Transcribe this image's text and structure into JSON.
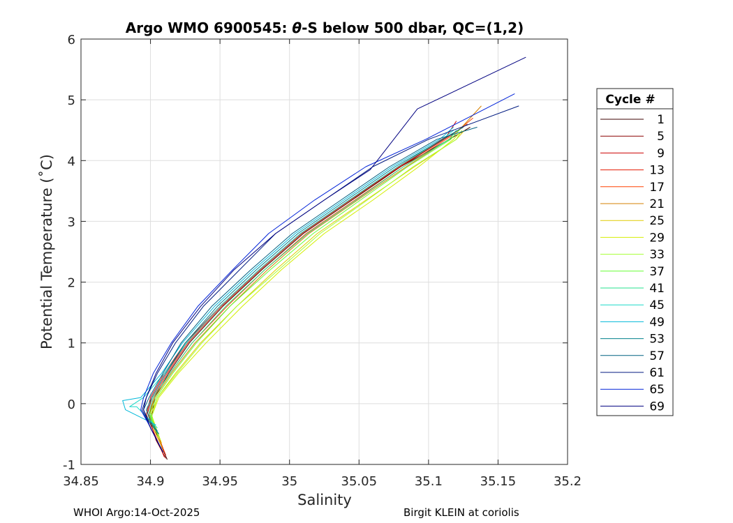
{
  "chart_data": {
    "type": "line",
    "title": "Argo WMO 6900545: θ-S below 500 dbar,  QC=(1,2)",
    "title_parts": {
      "pre": "Argo WMO 6900545: ",
      "theta": "θ",
      "post": "-S below 500 dbar,  QC=(1,2)"
    },
    "xlabel": "Salinity",
    "ylabel": "Potential Temperature (˚C)",
    "xlim": [
      34.85,
      35.2
    ],
    "ylim": [
      -1,
      6
    ],
    "xticks": [
      34.85,
      34.9,
      34.95,
      35.0,
      35.05,
      35.1,
      35.15,
      35.2
    ],
    "xtick_labels": [
      "34.85",
      "34.9",
      "34.95",
      "35",
      "35.05",
      "35.1",
      "35.15",
      "35.2"
    ],
    "yticks": [
      -1,
      0,
      1,
      2,
      3,
      4,
      5,
      6
    ],
    "ytick_labels": [
      "-1",
      "0",
      "1",
      "2",
      "3",
      "4",
      "5",
      "6"
    ],
    "grid": true,
    "legend": {
      "title": "Cycle #",
      "placement": "right-outside",
      "entries": [
        {
          "label": "1",
          "color": "#3d0000"
        },
        {
          "label": "5",
          "color": "#8c0000"
        },
        {
          "label": "9",
          "color": "#cc0000"
        },
        {
          "label": "13",
          "color": "#e61a00"
        },
        {
          "label": "17",
          "color": "#ff4000"
        },
        {
          "label": "21",
          "color": "#d68000"
        },
        {
          "label": "25",
          "color": "#e0cc00"
        },
        {
          "label": "29",
          "color": "#d4ee00"
        },
        {
          "label": "33",
          "color": "#a6ff33"
        },
        {
          "label": "37",
          "color": "#66ff33"
        },
        {
          "label": "41",
          "color": "#26e08c"
        },
        {
          "label": "45",
          "color": "#1ad9c8"
        },
        {
          "label": "49",
          "color": "#00b8d9"
        },
        {
          "label": "53",
          "color": "#00808c"
        },
        {
          "label": "57",
          "color": "#006080"
        },
        {
          "label": "61",
          "color": "#001a80"
        },
        {
          "label": "65",
          "color": "#0022d9"
        },
        {
          "label": "69",
          "color": "#000080"
        }
      ]
    },
    "series": [
      {
        "name": "1",
        "color": "#3d0000",
        "x": [
          34.912,
          34.905,
          34.901,
          34.903,
          34.913,
          34.928,
          34.952,
          34.98,
          35.01,
          35.045,
          35.08,
          35.115,
          35.13
        ],
        "y": [
          -0.92,
          -0.55,
          -0.2,
          0.1,
          0.5,
          1.0,
          1.6,
          2.2,
          2.8,
          3.35,
          3.9,
          4.35,
          4.55
        ]
      },
      {
        "name": "5",
        "color": "#8c0000",
        "x": [
          34.911,
          34.904,
          34.898,
          34.901,
          34.911,
          34.926,
          34.95,
          34.978,
          35.008,
          35.043,
          35.08,
          35.118,
          35.128
        ],
        "y": [
          -0.9,
          -0.6,
          -0.15,
          0.1,
          0.5,
          1.0,
          1.6,
          2.2,
          2.8,
          3.35,
          3.9,
          4.45,
          4.6
        ]
      },
      {
        "name": "9",
        "color": "#cc0000",
        "x": [
          34.91,
          34.903,
          34.897,
          34.9,
          34.91,
          34.925,
          34.95,
          34.978,
          35.008,
          35.043,
          35.078,
          35.113,
          35.12
        ],
        "y": [
          -0.88,
          -0.5,
          -0.18,
          0.1,
          0.5,
          1.0,
          1.6,
          2.2,
          2.8,
          3.35,
          3.9,
          4.4,
          4.65
        ]
      },
      {
        "name": "13",
        "color": "#e61a00",
        "x": [
          34.911,
          34.905,
          34.899,
          34.902,
          34.912,
          34.927,
          34.951,
          34.979,
          35.009,
          35.044,
          35.079,
          35.114,
          35.125
        ],
        "y": [
          -0.85,
          -0.5,
          -0.2,
          0.1,
          0.5,
          1.0,
          1.6,
          2.2,
          2.8,
          3.35,
          3.9,
          4.4,
          4.55
        ]
      },
      {
        "name": "17",
        "color": "#ff4000",
        "x": [
          34.91,
          34.904,
          34.899,
          34.902,
          34.914,
          34.93,
          34.955,
          34.982,
          35.012,
          35.047,
          35.082,
          35.116,
          35.132
        ],
        "y": [
          -0.8,
          -0.5,
          -0.2,
          0.1,
          0.5,
          1.0,
          1.6,
          2.2,
          2.8,
          3.35,
          3.9,
          4.4,
          4.7
        ]
      },
      {
        "name": "21",
        "color": "#d68000",
        "x": [
          34.909,
          34.903,
          34.899,
          34.903,
          34.915,
          34.932,
          34.957,
          34.984,
          35.014,
          35.049,
          35.084,
          35.118,
          35.138
        ],
        "y": [
          -0.75,
          -0.45,
          -0.2,
          0.1,
          0.5,
          1.0,
          1.6,
          2.2,
          2.8,
          3.35,
          3.9,
          4.4,
          4.9
        ]
      },
      {
        "name": "25",
        "color": "#e0cc00",
        "x": [
          34.908,
          34.903,
          34.9,
          34.905,
          34.918,
          34.936,
          34.962,
          34.99,
          35.02,
          35.055,
          35.09,
          35.12,
          35.126
        ],
        "y": [
          -0.7,
          -0.45,
          -0.2,
          0.1,
          0.5,
          1.0,
          1.6,
          2.2,
          2.8,
          3.35,
          3.9,
          4.35,
          4.5
        ]
      },
      {
        "name": "29",
        "color": "#d4ee00",
        "x": [
          34.908,
          34.904,
          34.901,
          34.906,
          34.92,
          34.94,
          34.966,
          34.994,
          35.025,
          35.06,
          35.093,
          35.118,
          35.122
        ],
        "y": [
          -0.65,
          -0.4,
          -0.2,
          0.1,
          0.5,
          1.0,
          1.6,
          2.2,
          2.8,
          3.35,
          3.9,
          4.35,
          4.45
        ]
      },
      {
        "name": "33",
        "color": "#a6ff33",
        "x": [
          34.907,
          34.903,
          34.901,
          34.905,
          34.919,
          34.937,
          34.962,
          34.992,
          35.022,
          35.056,
          35.089,
          35.12,
          35.124
        ],
        "y": [
          -0.6,
          -0.4,
          -0.2,
          0.1,
          0.5,
          1.0,
          1.6,
          2.2,
          2.8,
          3.35,
          3.9,
          4.35,
          4.5
        ]
      },
      {
        "name": "37",
        "color": "#66ff33",
        "x": [
          34.906,
          34.902,
          34.9,
          34.904,
          34.916,
          34.933,
          34.957,
          34.986,
          35.017,
          35.051,
          35.085,
          35.116,
          35.122
        ],
        "y": [
          -0.55,
          -0.35,
          -0.15,
          0.1,
          0.5,
          1.0,
          1.6,
          2.2,
          2.8,
          3.35,
          3.9,
          4.35,
          4.5
        ]
      },
      {
        "name": "41",
        "color": "#26e08c",
        "x": [
          34.906,
          34.901,
          34.899,
          34.902,
          34.914,
          34.93,
          34.954,
          34.982,
          35.013,
          35.048,
          35.082,
          35.115,
          35.12
        ],
        "y": [
          -0.5,
          -0.3,
          -0.15,
          0.1,
          0.5,
          1.0,
          1.6,
          2.2,
          2.8,
          3.35,
          3.9,
          4.35,
          4.5
        ]
      },
      {
        "name": "45",
        "color": "#1ad9c8",
        "x": [
          34.905,
          34.89,
          34.885,
          34.895,
          34.91,
          34.926,
          34.95,
          34.978,
          35.008,
          35.043,
          35.078,
          35.11,
          35.118
        ],
        "y": [
          -0.4,
          -0.05,
          -0.05,
          0.1,
          0.5,
          1.0,
          1.6,
          2.2,
          2.8,
          3.35,
          3.9,
          4.35,
          4.5
        ]
      },
      {
        "name": "49",
        "color": "#00b8d9",
        "x": [
          34.904,
          34.882,
          34.88,
          34.893,
          34.908,
          34.923,
          34.946,
          34.974,
          35.004,
          35.039,
          35.074,
          35.108,
          35.118
        ],
        "y": [
          -0.35,
          -0.1,
          0.05,
          0.1,
          0.5,
          1.0,
          1.6,
          2.2,
          2.8,
          3.35,
          3.9,
          4.35,
          4.55
        ]
      },
      {
        "name": "53",
        "color": "#00808c",
        "x": [
          34.905,
          34.9,
          34.897,
          34.901,
          34.911,
          34.925,
          34.948,
          34.976,
          35.006,
          35.041,
          35.076,
          35.11,
          35.125
        ],
        "y": [
          -0.45,
          -0.3,
          -0.1,
          0.1,
          0.5,
          1.0,
          1.6,
          2.2,
          2.8,
          3.35,
          3.9,
          4.35,
          4.55
        ]
      },
      {
        "name": "57",
        "color": "#006080",
        "x": [
          34.906,
          34.899,
          34.895,
          34.899,
          34.909,
          34.922,
          34.944,
          34.972,
          35.002,
          35.037,
          35.072,
          35.106,
          35.135
        ],
        "y": [
          -0.5,
          -0.3,
          -0.1,
          0.1,
          0.5,
          1.0,
          1.6,
          2.2,
          2.8,
          3.35,
          3.9,
          4.35,
          4.55
        ]
      },
      {
        "name": "61",
        "color": "#001a80",
        "x": [
          34.909,
          34.9,
          34.894,
          34.897,
          34.905,
          34.918,
          34.938,
          34.964,
          34.99,
          35.025,
          35.06,
          35.1,
          35.165
        ],
        "y": [
          -0.8,
          -0.4,
          -0.1,
          0.1,
          0.5,
          1.0,
          1.6,
          2.2,
          2.8,
          3.35,
          3.9,
          4.35,
          4.9
        ]
      },
      {
        "name": "65",
        "color": "#0022d9",
        "x": [
          34.908,
          34.899,
          34.893,
          34.895,
          34.902,
          34.915,
          34.934,
          34.959,
          34.985,
          35.018,
          35.055,
          35.098,
          35.162
        ],
        "y": [
          -0.75,
          -0.35,
          -0.1,
          0.1,
          0.5,
          1.0,
          1.6,
          2.2,
          2.8,
          3.35,
          3.9,
          4.35,
          5.1
        ]
      },
      {
        "name": "69",
        "color": "#000080",
        "x": [
          34.909,
          34.9,
          34.895,
          34.897,
          34.904,
          34.916,
          34.936,
          34.96,
          34.99,
          35.025,
          35.058,
          35.092,
          35.17
        ],
        "y": [
          -0.8,
          -0.4,
          -0.1,
          0.1,
          0.5,
          1.0,
          1.6,
          2.2,
          2.8,
          3.35,
          3.85,
          4.85,
          5.7
        ]
      }
    ]
  },
  "footer": {
    "left": "WHOI Argo:14-Oct-2025",
    "right": "Birgit KLEIN at coriolis"
  }
}
